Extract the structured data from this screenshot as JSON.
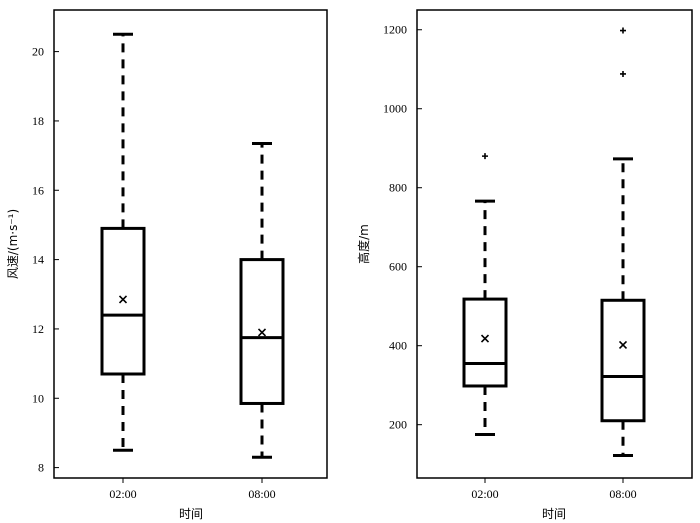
{
  "chart_data": [
    {
      "type": "box",
      "xlabel": "时间",
      "ylabel": "风速/(m·s⁻¹)",
      "categories": [
        "02:00",
        "08:00"
      ],
      "ylim": [
        7.7,
        21.2
      ],
      "yticks": [
        8,
        10,
        12,
        14,
        16,
        18,
        20
      ],
      "grid": false,
      "boxes": [
        {
          "category": "02:00",
          "whisker_low": 8.5,
          "q1": 10.7,
          "median": 12.4,
          "q3": 14.9,
          "whisker_high": 20.5,
          "mean": 12.85,
          "outliers": []
        },
        {
          "category": "08:00",
          "whisker_low": 8.3,
          "q1": 9.85,
          "median": 11.75,
          "q3": 14.0,
          "whisker_high": 17.35,
          "mean": 11.9,
          "outliers": []
        }
      ]
    },
    {
      "type": "box",
      "xlabel": "时间",
      "ylabel": "高度/m",
      "categories": [
        "02:00",
        "08:00"
      ],
      "ylim": [
        65,
        1250
      ],
      "yticks": [
        200,
        400,
        600,
        800,
        1000,
        1200
      ],
      "grid": false,
      "boxes": [
        {
          "category": "02:00",
          "whisker_low": 175,
          "q1": 298,
          "median": 355,
          "q3": 518,
          "whisker_high": 766,
          "mean": 418,
          "outliers": [
            880
          ]
        },
        {
          "category": "08:00",
          "whisker_low": 122,
          "q1": 210,
          "median": 322,
          "q3": 515,
          "whisker_high": 873,
          "mean": 402,
          "outliers": [
            1088,
            1198
          ]
        }
      ]
    }
  ]
}
